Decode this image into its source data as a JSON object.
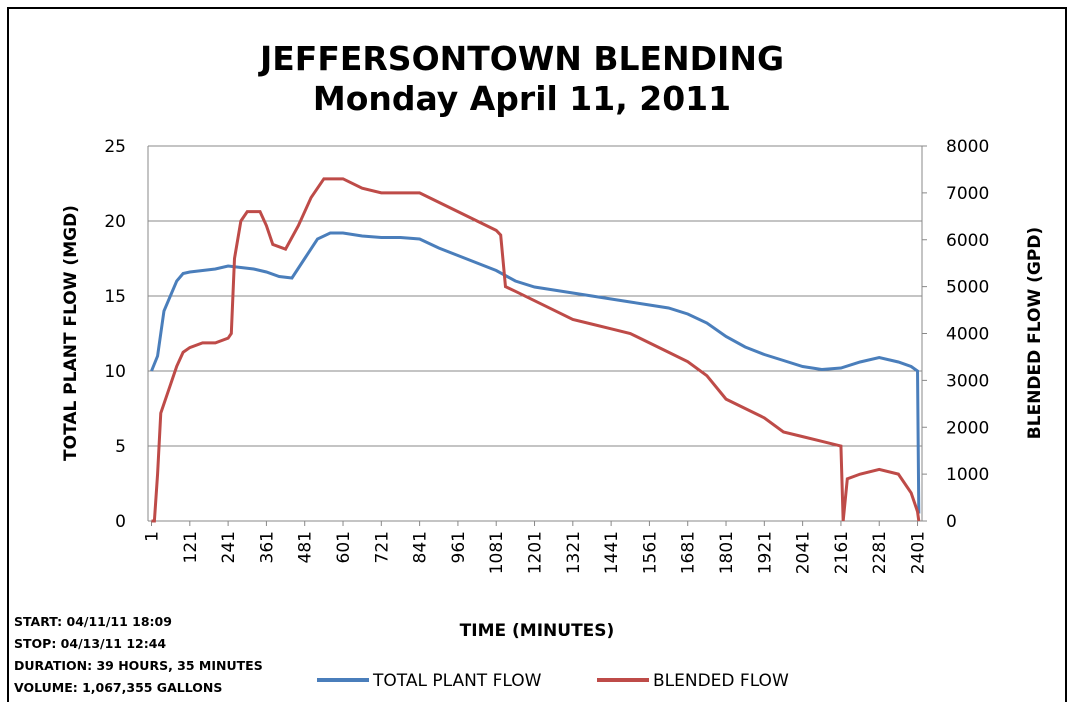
{
  "chart_data": {
    "type": "line",
    "title": "JEFFERSONTOWN BLENDING",
    "subtitle": "Monday April 11, 2011",
    "x_label": "TIME (MINUTES)",
    "y_label": "TOTAL PLANT FLOW (MGD)",
    "y2_label": "BLENDED FLOW (GPD)",
    "annotations": [
      "START: 04/11/11 18:09",
      "STOP: 04/13/11 12:44",
      "DURATION: 39 HOURS, 35 MINUTES",
      "VOLUME: 1,067,355 GALLONS"
    ],
    "xlim": [
      -10,
      2415
    ],
    "xticks": [
      1,
      121,
      241,
      361,
      481,
      601,
      721,
      841,
      961,
      1081,
      1201,
      1321,
      1441,
      1561,
      1681,
      1801,
      1921,
      2041,
      2161,
      2281,
      2401
    ],
    "ylim": [
      0,
      25
    ],
    "yticks": [
      0,
      5,
      10,
      15,
      20,
      25
    ],
    "y2lim": [
      0,
      8000
    ],
    "y2ticks": [
      0,
      1000,
      2000,
      3000,
      4000,
      5000,
      6000,
      7000,
      8000
    ],
    "grid": true,
    "legend": "bottom",
    "series": [
      {
        "name": "TOTAL PLANT FLOW",
        "color": "#4a7ebb",
        "x": [
          1,
          20,
          40,
          60,
          80,
          100,
          121,
          161,
          201,
          241,
          281,
          321,
          361,
          401,
          441,
          481,
          521,
          561,
          601,
          661,
          721,
          781,
          841,
          901,
          961,
          1021,
          1081,
          1141,
          1201,
          1261,
          1321,
          1381,
          1441,
          1501,
          1561,
          1621,
          1681,
          1741,
          1801,
          1861,
          1921,
          1981,
          2041,
          2101,
          2161,
          2221,
          2281,
          2341,
          2381,
          2401,
          2405
        ],
        "values": [
          10,
          11,
          14,
          15,
          16,
          16.5,
          16.6,
          16.7,
          16.8,
          17,
          16.9,
          16.8,
          16.6,
          16.3,
          16.2,
          17.5,
          18.8,
          19.2,
          19.2,
          19,
          18.9,
          18.9,
          18.8,
          18.2,
          17.7,
          17.2,
          16.7,
          16,
          15.6,
          15.4,
          15.2,
          15,
          14.8,
          14.6,
          14.4,
          14.2,
          13.8,
          13.2,
          12.3,
          11.6,
          11.1,
          10.7,
          10.3,
          10.1,
          10.2,
          10.6,
          10.9,
          10.6,
          10.3,
          10,
          0.5
        ]
      },
      {
        "name": "BLENDED FLOW",
        "color": "#be4b48",
        "axis": "y2",
        "x": [
          1,
          10,
          20,
          30,
          60,
          80,
          100,
          121,
          161,
          201,
          241,
          251,
          261,
          281,
          301,
          341,
          361,
          381,
          421,
          461,
          501,
          541,
          601,
          661,
          721,
          781,
          841,
          901,
          961,
          1021,
          1081,
          1095,
          1110,
          1141,
          1201,
          1261,
          1321,
          1381,
          1441,
          1501,
          1561,
          1621,
          1681,
          1741,
          1801,
          1861,
          1921,
          1981,
          2041,
          2101,
          2161,
          2168,
          2181,
          2221,
          2281,
          2341,
          2381,
          2401,
          2405
        ],
        "values": [
          0,
          0,
          1000,
          2300,
          2900,
          3300,
          3600,
          3700,
          3800,
          3800,
          3900,
          4000,
          5600,
          6400,
          6600,
          6600,
          6300,
          5900,
          5800,
          6300,
          6900,
          7300,
          7300,
          7100,
          7000,
          7000,
          7000,
          6800,
          6600,
          6400,
          6200,
          6100,
          5000,
          4900,
          4700,
          4500,
          4300,
          4200,
          4100,
          4000,
          3800,
          3600,
          3400,
          3100,
          2600,
          2400,
          2200,
          1900,
          1800,
          1700,
          1600,
          0,
          900,
          1000,
          1100,
          1000,
          600,
          200,
          0
        ]
      }
    ]
  }
}
